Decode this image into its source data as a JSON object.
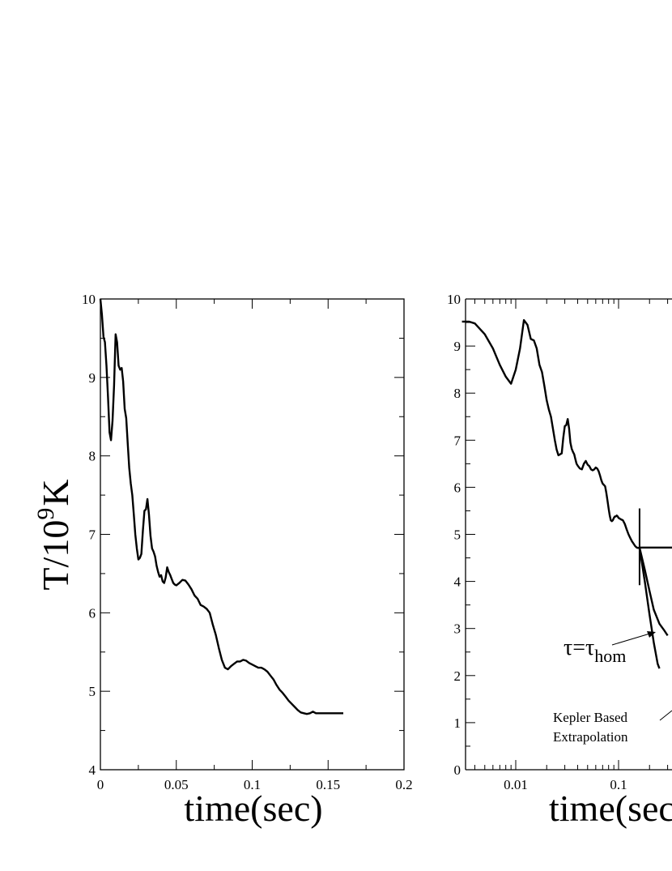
{
  "chart_data": [
    {
      "type": "line",
      "xlabel": "time(sec)",
      "ylabel": "T/10",
      "ylabel_exponent": "9",
      "ylabel_unit": "K",
      "xscale": "linear",
      "xlim": [
        0,
        0.2
      ],
      "ylim": [
        4,
        10
      ],
      "x_ticks": [
        "0",
        "0.05",
        "0.1",
        "0.15",
        "0.2"
      ],
      "y_ticks": [
        "4",
        "5",
        "6",
        "7",
        "8",
        "9",
        "10"
      ],
      "grid": false,
      "series": [
        {
          "x": [
            0.0,
            0.001,
            0.002,
            0.003,
            0.004,
            0.005,
            0.006,
            0.007,
            0.008,
            0.009,
            0.01,
            0.011,
            0.012,
            0.013,
            0.014,
            0.015,
            0.016,
            0.017,
            0.018,
            0.019,
            0.02,
            0.021,
            0.022,
            0.023,
            0.024,
            0.025,
            0.026,
            0.027,
            0.028,
            0.029,
            0.03,
            0.031,
            0.032,
            0.033,
            0.034,
            0.035,
            0.036,
            0.037,
            0.038,
            0.039,
            0.04,
            0.041,
            0.042,
            0.043,
            0.044,
            0.045,
            0.046,
            0.047,
            0.048,
            0.049,
            0.05,
            0.052,
            0.054,
            0.056,
            0.058,
            0.06,
            0.062,
            0.064,
            0.066,
            0.068,
            0.07,
            0.072,
            0.074,
            0.076,
            0.078,
            0.08,
            0.082,
            0.084,
            0.086,
            0.088,
            0.09,
            0.092,
            0.094,
            0.096,
            0.098,
            0.1,
            0.102,
            0.104,
            0.106,
            0.108,
            0.11,
            0.112,
            0.114,
            0.116,
            0.118,
            0.12,
            0.122,
            0.124,
            0.126,
            0.128,
            0.13,
            0.132,
            0.134,
            0.136,
            0.138,
            0.14,
            0.142,
            0.144,
            0.146,
            0.148,
            0.15,
            0.152,
            0.154,
            0.156,
            0.158,
            0.16
          ],
          "y": [
            10.0,
            9.8,
            9.52,
            9.45,
            9.15,
            8.75,
            8.3,
            8.2,
            8.45,
            8.9,
            9.55,
            9.45,
            9.15,
            9.1,
            9.12,
            8.95,
            8.6,
            8.48,
            8.15,
            7.85,
            7.65,
            7.5,
            7.25,
            7.0,
            6.82,
            6.68,
            6.7,
            6.75,
            7.05,
            7.3,
            7.32,
            7.45,
            7.25,
            6.98,
            6.82,
            6.78,
            6.72,
            6.6,
            6.52,
            6.46,
            6.48,
            6.4,
            6.38,
            6.45,
            6.58,
            6.52,
            6.48,
            6.43,
            6.38,
            6.36,
            6.35,
            6.38,
            6.42,
            6.41,
            6.36,
            6.3,
            6.22,
            6.18,
            6.1,
            6.08,
            6.05,
            6.0,
            5.85,
            5.72,
            5.55,
            5.4,
            5.3,
            5.28,
            5.32,
            5.35,
            5.38,
            5.38,
            5.4,
            5.39,
            5.36,
            5.34,
            5.32,
            5.3,
            5.3,
            5.28,
            5.25,
            5.2,
            5.15,
            5.08,
            5.02,
            4.98,
            4.93,
            4.88,
            4.84,
            4.8,
            4.76,
            4.73,
            4.72,
            4.71,
            4.72,
            4.74,
            4.72,
            4.72,
            4.72,
            4.72,
            4.72,
            4.72,
            4.72,
            4.72,
            4.72,
            4.72
          ]
        }
      ]
    },
    {
      "type": "line",
      "xlabel": "time(sec",
      "xscale": "log",
      "xlim": [
        0.003,
        1.0
      ],
      "ylim": [
        0,
        10
      ],
      "x_ticks": [
        "0.01",
        "0.1"
      ],
      "y_ticks": [
        "0",
        "1",
        "2",
        "3",
        "4",
        "5",
        "6",
        "7",
        "8",
        "9",
        "10"
      ],
      "grid": false,
      "annotations": [
        {
          "text": "τ=τ",
          "subscript": "hom",
          "target": {
            "x": 0.085,
            "y": 2.9
          }
        },
        {
          "text_lines": [
            "Kepler Based",
            "Extrapolation"
          ]
        }
      ],
      "series": [
        {
          "x": [
            0.003,
            0.0035,
            0.004,
            0.005,
            0.006,
            0.007,
            0.008,
            0.009,
            0.01,
            0.011,
            0.012,
            0.013,
            0.014,
            0.015,
            0.016,
            0.017,
            0.018,
            0.019,
            0.02,
            0.021,
            0.022,
            0.023,
            0.024,
            0.025,
            0.026,
            0.027,
            0.028,
            0.029,
            0.03,
            0.031,
            0.032,
            0.033,
            0.034,
            0.035,
            0.036,
            0.037,
            0.038,
            0.039,
            0.04,
            0.042,
            0.044,
            0.046,
            0.048,
            0.05,
            0.052,
            0.054,
            0.056,
            0.058,
            0.06,
            0.062,
            0.064,
            0.066,
            0.068,
            0.07,
            0.072,
            0.074,
            0.076,
            0.078,
            0.08,
            0.082,
            0.084,
            0.086,
            0.088,
            0.09,
            0.092,
            0.094,
            0.096,
            0.098,
            0.1,
            0.105,
            0.11,
            0.115,
            0.12,
            0.125,
            0.13,
            0.135,
            0.14,
            0.145,
            0.15,
            0.155,
            0.16
          ],
          "y": [
            9.52,
            9.52,
            9.48,
            9.25,
            8.95,
            8.6,
            8.35,
            8.2,
            8.5,
            8.95,
            9.55,
            9.45,
            9.15,
            9.12,
            8.95,
            8.6,
            8.45,
            8.15,
            7.85,
            7.65,
            7.5,
            7.25,
            7.0,
            6.8,
            6.68,
            6.7,
            6.72,
            7.05,
            7.3,
            7.32,
            7.45,
            7.25,
            6.95,
            6.82,
            6.75,
            6.7,
            6.6,
            6.5,
            6.46,
            6.4,
            6.38,
            6.5,
            6.56,
            6.48,
            6.45,
            6.38,
            6.36,
            6.38,
            6.42,
            6.4,
            6.34,
            6.25,
            6.15,
            6.08,
            6.05,
            6.02,
            5.88,
            5.72,
            5.55,
            5.4,
            5.3,
            5.28,
            5.3,
            5.35,
            5.38,
            5.38,
            5.4,
            5.38,
            5.35,
            5.32,
            5.3,
            5.22,
            5.1,
            5.0,
            4.92,
            4.85,
            4.8,
            4.75,
            4.72,
            4.71,
            4.72
          ]
        },
        {
          "x": [
            0.16,
            0.2,
            0.3,
            0.4,
            0.5,
            0.7,
            1.0
          ],
          "y": [
            4.72,
            4.72,
            4.72,
            4.72,
            4.72,
            4.72,
            4.72
          ]
        },
        {
          "x": [
            0.16,
            0.18,
            0.2,
            0.22,
            0.24,
            0.25
          ],
          "y": [
            4.72,
            4.0,
            3.3,
            2.7,
            2.25,
            2.15
          ]
        },
        {
          "x": [
            0.16,
            0.18,
            0.2,
            0.22,
            0.25,
            0.28,
            0.3
          ],
          "y": [
            4.72,
            4.25,
            3.8,
            3.4,
            3.1,
            2.95,
            2.85
          ]
        }
      ]
    }
  ]
}
